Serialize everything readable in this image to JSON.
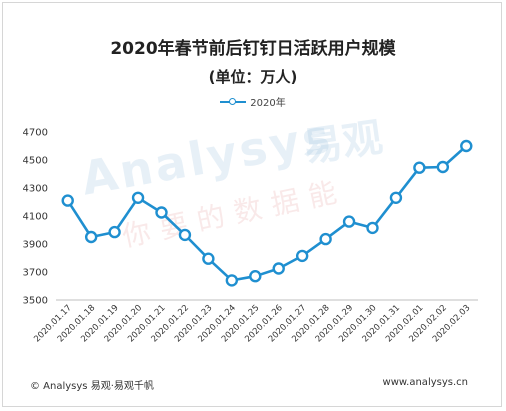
{
  "chart_data": {
    "type": "line",
    "title": "2020年春节前后钉钉日活跃用户规模",
    "subtitle": "(单位：万人)",
    "legend_position": "top-center",
    "grid": false,
    "ylim": [
      3500,
      4700
    ],
    "yticks": [
      3500,
      3700,
      3900,
      4100,
      4300,
      4500,
      4700
    ],
    "categories": [
      "2020.01.17",
      "2020.01.18",
      "2020.01.19",
      "2020.01.20",
      "2020.01.21",
      "2020.01.22",
      "2020.01.23",
      "2020.01.24",
      "2020.01.25",
      "2020.01.26",
      "2020.01.27",
      "2020.01.28",
      "2020.01.29",
      "2020.01.30",
      "2020.01.31",
      "2020.02.01",
      "2020.02.02",
      "2020.02.03"
    ],
    "series": [
      {
        "name": "2020年",
        "color": "#1f8fd0",
        "values": [
          4210,
          3950,
          3985,
          4230,
          4125,
          3965,
          3795,
          3640,
          3670,
          3725,
          3815,
          3935,
          4060,
          4015,
          4230,
          4445,
          4450,
          4600
        ]
      }
    ]
  },
  "watermark": {
    "english": "Analysys",
    "chinese_brand": "易观",
    "slogan": "你要的数据能"
  },
  "footer": {
    "copyright": "© Analysys 易观·易观千帆",
    "website": "www.analysys.cn"
  }
}
